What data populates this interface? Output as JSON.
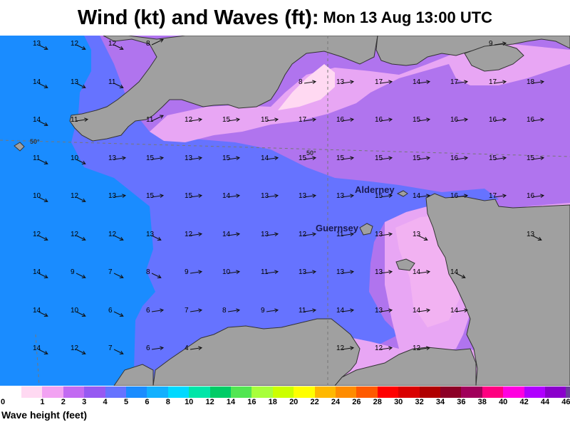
{
  "title": {
    "main": "Wind (kt) and Waves (ft):",
    "time": "Mon 13 Aug 13:00 UTC"
  },
  "map": {
    "places": [
      "Alderney",
      "Guernsey"
    ],
    "grid_labels": [
      "50°",
      "50°"
    ],
    "wind_observations": [
      {
        "speed_kt": "13",
        "dir": "SE"
      },
      {
        "speed_kt": "12",
        "dir": "SE"
      },
      {
        "speed_kt": "12",
        "dir": "SE"
      },
      {
        "speed_kt": "8",
        "dir": "NE"
      },
      {
        "speed_kt": "9",
        "dir": "E"
      },
      {
        "speed_kt": "14",
        "dir": "SE"
      },
      {
        "speed_kt": "13",
        "dir": "SE"
      },
      {
        "speed_kt": "11",
        "dir": "SE"
      },
      {
        "speed_kt": "8",
        "dir": "E"
      },
      {
        "speed_kt": "13",
        "dir": "E"
      },
      {
        "speed_kt": "17",
        "dir": "E"
      },
      {
        "speed_kt": "14",
        "dir": "E"
      },
      {
        "speed_kt": "17",
        "dir": "E"
      },
      {
        "speed_kt": "17",
        "dir": "E"
      },
      {
        "speed_kt": "18",
        "dir": "E"
      },
      {
        "speed_kt": "14",
        "dir": "SE"
      },
      {
        "speed_kt": "11",
        "dir": "E"
      },
      {
        "speed_kt": "11",
        "dir": "NE"
      },
      {
        "speed_kt": "12",
        "dir": "E"
      },
      {
        "speed_kt": "15",
        "dir": "E"
      },
      {
        "speed_kt": "15",
        "dir": "E"
      },
      {
        "speed_kt": "17",
        "dir": "E"
      },
      {
        "speed_kt": "16",
        "dir": "E"
      },
      {
        "speed_kt": "16",
        "dir": "E"
      },
      {
        "speed_kt": "15",
        "dir": "E"
      },
      {
        "speed_kt": "16",
        "dir": "E"
      },
      {
        "speed_kt": "16",
        "dir": "E"
      },
      {
        "speed_kt": "16",
        "dir": "E"
      },
      {
        "speed_kt": "11",
        "dir": "SE"
      },
      {
        "speed_kt": "10",
        "dir": "SE"
      },
      {
        "speed_kt": "13",
        "dir": "E"
      },
      {
        "speed_kt": "15",
        "dir": "E"
      },
      {
        "speed_kt": "13",
        "dir": "E"
      },
      {
        "speed_kt": "15",
        "dir": "E"
      },
      {
        "speed_kt": "14",
        "dir": "E"
      },
      {
        "speed_kt": "15",
        "dir": "E"
      },
      {
        "speed_kt": "15",
        "dir": "E"
      },
      {
        "speed_kt": "15",
        "dir": "E"
      },
      {
        "speed_kt": "15",
        "dir": "E"
      },
      {
        "speed_kt": "16",
        "dir": "E"
      },
      {
        "speed_kt": "15",
        "dir": "E"
      },
      {
        "speed_kt": "15",
        "dir": "E"
      },
      {
        "speed_kt": "10",
        "dir": "SE"
      },
      {
        "speed_kt": "12",
        "dir": "SE"
      },
      {
        "speed_kt": "13",
        "dir": "E"
      },
      {
        "speed_kt": "15",
        "dir": "E"
      },
      {
        "speed_kt": "15",
        "dir": "E"
      },
      {
        "speed_kt": "14",
        "dir": "E"
      },
      {
        "speed_kt": "13",
        "dir": "E"
      },
      {
        "speed_kt": "13",
        "dir": "E"
      },
      {
        "speed_kt": "13",
        "dir": "E"
      },
      {
        "speed_kt": "15",
        "dir": "E"
      },
      {
        "speed_kt": "14",
        "dir": "E"
      },
      {
        "speed_kt": "16",
        "dir": "E"
      },
      {
        "speed_kt": "17",
        "dir": "E"
      },
      {
        "speed_kt": "16",
        "dir": "E"
      },
      {
        "speed_kt": "12",
        "dir": "SE"
      },
      {
        "speed_kt": "12",
        "dir": "SE"
      },
      {
        "speed_kt": "12",
        "dir": "SE"
      },
      {
        "speed_kt": "13",
        "dir": "SE"
      },
      {
        "speed_kt": "12",
        "dir": "E"
      },
      {
        "speed_kt": "14",
        "dir": "E"
      },
      {
        "speed_kt": "13",
        "dir": "E"
      },
      {
        "speed_kt": "12",
        "dir": "E"
      },
      {
        "speed_kt": "11",
        "dir": "E"
      },
      {
        "speed_kt": "13",
        "dir": "E"
      },
      {
        "speed_kt": "13",
        "dir": "SE"
      },
      {
        "speed_kt": "13",
        "dir": "SE"
      },
      {
        "speed_kt": "14",
        "dir": "SE"
      },
      {
        "speed_kt": "9",
        "dir": "SE"
      },
      {
        "speed_kt": "7",
        "dir": "SE"
      },
      {
        "speed_kt": "8",
        "dir": "SE"
      },
      {
        "speed_kt": "9",
        "dir": "E"
      },
      {
        "speed_kt": "10",
        "dir": "E"
      },
      {
        "speed_kt": "11",
        "dir": "E"
      },
      {
        "speed_kt": "13",
        "dir": "E"
      },
      {
        "speed_kt": "13",
        "dir": "E"
      },
      {
        "speed_kt": "13",
        "dir": "E"
      },
      {
        "speed_kt": "14",
        "dir": "E"
      },
      {
        "speed_kt": "14",
        "dir": "SE"
      },
      {
        "speed_kt": "14",
        "dir": "SE"
      },
      {
        "speed_kt": "10",
        "dir": "SE"
      },
      {
        "speed_kt": "6",
        "dir": "SE"
      },
      {
        "speed_kt": "6",
        "dir": "E"
      },
      {
        "speed_kt": "7",
        "dir": "E"
      },
      {
        "speed_kt": "8",
        "dir": "E"
      },
      {
        "speed_kt": "9",
        "dir": "E"
      },
      {
        "speed_kt": "11",
        "dir": "E"
      },
      {
        "speed_kt": "14",
        "dir": "E"
      },
      {
        "speed_kt": "13",
        "dir": "E"
      },
      {
        "speed_kt": "14",
        "dir": "E"
      },
      {
        "speed_kt": "14",
        "dir": "E"
      },
      {
        "speed_kt": "14",
        "dir": "SE"
      },
      {
        "speed_kt": "12",
        "dir": "SE"
      },
      {
        "speed_kt": "7",
        "dir": "SE"
      },
      {
        "speed_kt": "6",
        "dir": "E"
      },
      {
        "speed_kt": "4",
        "dir": "E"
      },
      {
        "speed_kt": "12",
        "dir": "E"
      },
      {
        "speed_kt": "12",
        "dir": "E"
      },
      {
        "speed_kt": "12",
        "dir": "E"
      }
    ]
  },
  "legend": {
    "title": "Wave height (feet)",
    "bins": [
      {
        "label": "0",
        "color": "#ffd9f2"
      },
      {
        "label": "1",
        "color": "#f2a2f2"
      },
      {
        "label": "2",
        "color": "#c26af2"
      },
      {
        "label": "3",
        "color": "#9659f2"
      },
      {
        "label": "4",
        "color": "#6673ff"
      },
      {
        "label": "5",
        "color": "#1a8cff"
      },
      {
        "label": "6",
        "color": "#12b0ff"
      },
      {
        "label": "8",
        "color": "#00d9ff"
      },
      {
        "label": "10",
        "color": "#00e6a8"
      },
      {
        "label": "12",
        "color": "#00cc66"
      },
      {
        "label": "14",
        "color": "#52e652"
      },
      {
        "label": "16",
        "color": "#a8ff3c"
      },
      {
        "label": "18",
        "color": "#ccff00"
      },
      {
        "label": "20",
        "color": "#ffff00"
      },
      {
        "label": "22",
        "color": "#ffb800"
      },
      {
        "label": "24",
        "color": "#ff8c00"
      },
      {
        "label": "26",
        "color": "#ff5a00"
      },
      {
        "label": "28",
        "color": "#ff0000"
      },
      {
        "label": "30",
        "color": "#d90000"
      },
      {
        "label": "32",
        "color": "#b00000"
      },
      {
        "label": "34",
        "color": "#8c0026"
      },
      {
        "label": "36",
        "color": "#a0005a"
      },
      {
        "label": "38",
        "color": "#ff0080"
      },
      {
        "label": "40",
        "color": "#ff00e0"
      },
      {
        "label": "42",
        "color": "#b000ff"
      },
      {
        "label": "44",
        "color": "#8a00cc"
      },
      {
        "label": "46",
        "color": "#6a3c9c"
      }
    ]
  }
}
